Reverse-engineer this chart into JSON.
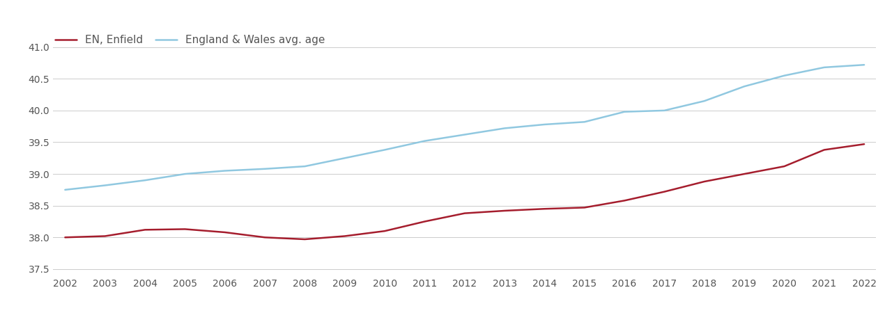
{
  "years": [
    2002,
    2003,
    2004,
    2005,
    2006,
    2007,
    2008,
    2009,
    2010,
    2011,
    2012,
    2013,
    2014,
    2015,
    2016,
    2017,
    2018,
    2019,
    2020,
    2021,
    2022
  ],
  "enfield": [
    38.0,
    38.02,
    38.12,
    38.13,
    38.08,
    38.0,
    37.97,
    38.02,
    38.1,
    38.25,
    38.38,
    38.42,
    38.45,
    38.47,
    38.58,
    38.72,
    38.88,
    39.0,
    39.12,
    39.38,
    39.47
  ],
  "england_wales": [
    38.75,
    38.82,
    38.9,
    39.0,
    39.05,
    39.08,
    39.12,
    39.25,
    39.38,
    39.52,
    39.62,
    39.72,
    39.78,
    39.82,
    39.98,
    40.0,
    40.15,
    40.38,
    40.55,
    40.68,
    40.72
  ],
  "enfield_color": "#a51d2d",
  "ew_color": "#90c8e0",
  "enfield_label": "EN, Enfield",
  "ew_label": "England & Wales avg. age",
  "ylim_min": 37.4,
  "ylim_max": 41.15,
  "yticks": [
    37.5,
    38.0,
    38.5,
    39.0,
    39.5,
    40.0,
    40.5,
    41.0
  ],
  "background_color": "#ffffff",
  "grid_color": "#cccccc",
  "line_width": 1.8,
  "font_color": "#555555",
  "font_size": 11,
  "tick_font_size": 10
}
